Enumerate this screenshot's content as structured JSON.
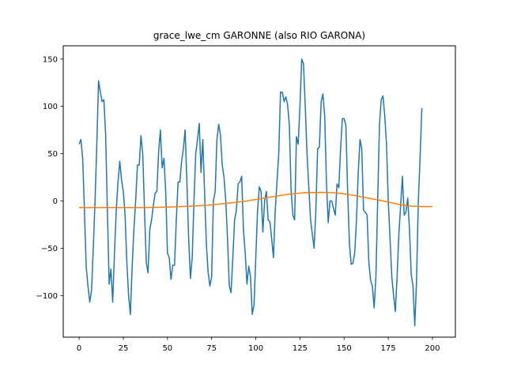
{
  "chart_data": {
    "type": "line",
    "title": "grace_lwe_cm GARONNE (also RIO GARONA)",
    "xlabel": "",
    "ylabel": "",
    "xlim": [
      -9,
      213
    ],
    "ylim": [
      -144,
      164
    ],
    "xticks": [
      0,
      25,
      50,
      75,
      100,
      125,
      150,
      175,
      200
    ],
    "yticks": [
      -100,
      -50,
      0,
      50,
      100,
      150
    ],
    "grid": false,
    "colors": {
      "series1": "#1f77b4",
      "series2": "#ff7f0e"
    },
    "series": [
      {
        "values": [
          60,
          65,
          45,
          -10,
          -70,
          -90,
          -107,
          -95,
          -50,
          0,
          60,
          127,
          115,
          105,
          107,
          70,
          -12,
          -88,
          -72,
          -107,
          -55,
          -10,
          20,
          42,
          22,
          10,
          -15,
          -65,
          -100,
          -120,
          -70,
          -30,
          0,
          38,
          38,
          69,
          50,
          -10,
          -65,
          -76,
          -30,
          -20,
          -5,
          8,
          10,
          52,
          75,
          35,
          45,
          10,
          -55,
          -60,
          -83,
          -68,
          -68,
          -20,
          20,
          20,
          42,
          55,
          75,
          20,
          -40,
          -82,
          -60,
          0,
          50,
          65,
          82,
          30,
          65,
          10,
          -45,
          -75,
          -90,
          -80,
          0,
          10,
          65,
          81,
          70,
          38,
          25,
          0,
          -40,
          -90,
          -97,
          -60,
          -20,
          -10,
          18,
          20,
          26,
          -30,
          -55,
          -88,
          -69,
          -80,
          -120,
          -110,
          -60,
          -10,
          15,
          10,
          -33,
          0,
          10,
          -20,
          -22,
          -40,
          -60,
          -10,
          20,
          50,
          115,
          115,
          105,
          110,
          102,
          80,
          10,
          -15,
          -20,
          68,
          60,
          100,
          150,
          145,
          100,
          50,
          15,
          -20,
          -35,
          -50,
          -10,
          55,
          57,
          105,
          113,
          90,
          20,
          -23,
          0,
          0,
          -8,
          -15,
          18,
          14,
          55,
          87,
          87,
          80,
          10,
          -45,
          -67,
          -66,
          -55,
          -20,
          30,
          65,
          55,
          -10,
          -12,
          -15,
          -65,
          -84,
          -90,
          -113,
          -80,
          0,
          80,
          107,
          111,
          90,
          60,
          0,
          -40,
          -80,
          -100,
          -117,
          -80,
          -35,
          -5,
          26,
          -15,
          -12,
          3,
          -30,
          -78,
          -90,
          -132,
          -85,
          0,
          45,
          98
        ]
      },
      {
        "values": [
          -7,
          -7,
          -7,
          -7,
          -7,
          -7,
          -7,
          -7,
          -7,
          -7,
          -7,
          -7,
          -7,
          -7,
          -7,
          -7,
          -7,
          -7,
          -7,
          -7,
          -7,
          -7,
          -7,
          -7,
          -7,
          -7,
          -7,
          -7,
          -7,
          -7,
          -7,
          -7,
          -7,
          -7,
          -7,
          -7,
          -7,
          -7,
          -6.9,
          -6.9,
          -6.8,
          -6.8,
          -6.8,
          -6.8,
          -6.8,
          -6.7,
          -6.7,
          -6.6,
          -6.6,
          -6.5,
          -6.5,
          -6.4,
          -6.4,
          -6.3,
          -6.3,
          -6.2,
          -6.2,
          -6.1,
          -6,
          -5.9,
          -5.8,
          -5.7,
          -5.6,
          -5.5,
          -5.4,
          -5.3,
          -5.2,
          -5.1,
          -5,
          -4.9,
          -4.8,
          -4.7,
          -4.6,
          -4.5,
          -4.3,
          -4.1,
          -3.9,
          -3.8,
          -3.6,
          -3.4,
          -3.2,
          -3,
          -2.8,
          -2.6,
          -2.4,
          -2.2,
          -2,
          -1.8,
          -1.6,
          -1.4,
          -1.2,
          -1,
          -0.8,
          -0.5,
          -0.2,
          0,
          0.3,
          0.6,
          0.9,
          1.2,
          1.5,
          1.8,
          2.2,
          2.5,
          2.8,
          3.1,
          3.4,
          3.7,
          4,
          4.3,
          4.6,
          4.9,
          5.2,
          5.5,
          5.8,
          6,
          6.3,
          6.6,
          6.8,
          7.1,
          7.3,
          7.5,
          7.7,
          7.9,
          8,
          8.2,
          8.4,
          8.5,
          8.6,
          8.7,
          8.8,
          8.9,
          9,
          9,
          9,
          9,
          9,
          9,
          9,
          9,
          9,
          8.9,
          8.8,
          8.7,
          8.6,
          8.4,
          8.3,
          8.1,
          7.9,
          7.7,
          7.5,
          7.2,
          6.9,
          6.6,
          6.3,
          6,
          5.7,
          5.4,
          5,
          4.7,
          4.3,
          4,
          3.6,
          3.2,
          2.9,
          2.5,
          2.1,
          1.8,
          1.4,
          1.1,
          0.7,
          0.4,
          0,
          -0.4,
          -0.8,
          -1.2,
          -1.6,
          -2,
          -2.4,
          -2.8,
          -3.2,
          -3.6,
          -3.9,
          -4.2,
          -4.5,
          -4.8,
          -5,
          -5.2,
          -5.4,
          -5.5,
          -5.6,
          -5.7,
          -5.8,
          -5.9,
          -6,
          -6,
          -6,
          -6,
          -6,
          -6,
          -6
        ]
      }
    ]
  }
}
